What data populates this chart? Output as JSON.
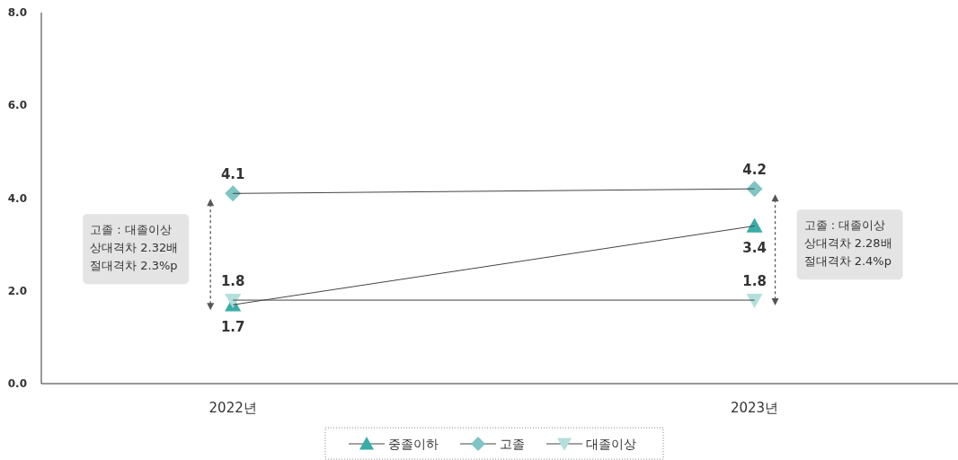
{
  "chart_data": {
    "type": "line",
    "categories": [
      "2022년",
      "2023년"
    ],
    "series": [
      {
        "name": "중졸이하",
        "color": "#3aaca6",
        "values": [
          1.7,
          3.4
        ],
        "marker": "triangle"
      },
      {
        "name": "고졸",
        "color": "#7ec5c4",
        "values": [
          4.1,
          4.2
        ],
        "marker": "diamond"
      },
      {
        "name": "대졸이상",
        "color": "#b3e0dc",
        "values": [
          1.8,
          1.8
        ],
        "marker": "triangle-down"
      }
    ],
    "ylim": [
      0,
      8
    ],
    "yticks": [
      {
        "value": 0,
        "label": "0.0"
      },
      {
        "value": 2,
        "label": "2.0"
      },
      {
        "value": 4,
        "label": "4.0"
      },
      {
        "value": 6,
        "label": "6.0"
      },
      {
        "value": 8,
        "label": "8.0"
      }
    ],
    "data_labels": true,
    "legend": "bottom",
    "grid": false,
    "annotations": [
      "고졸 : 대졸이상\n상대격차 2.32배\n절대격차 2.3%p",
      "고졸 : 대졸이상\n상대격차 2.28배\n절대격차 2.4%p"
    ]
  }
}
